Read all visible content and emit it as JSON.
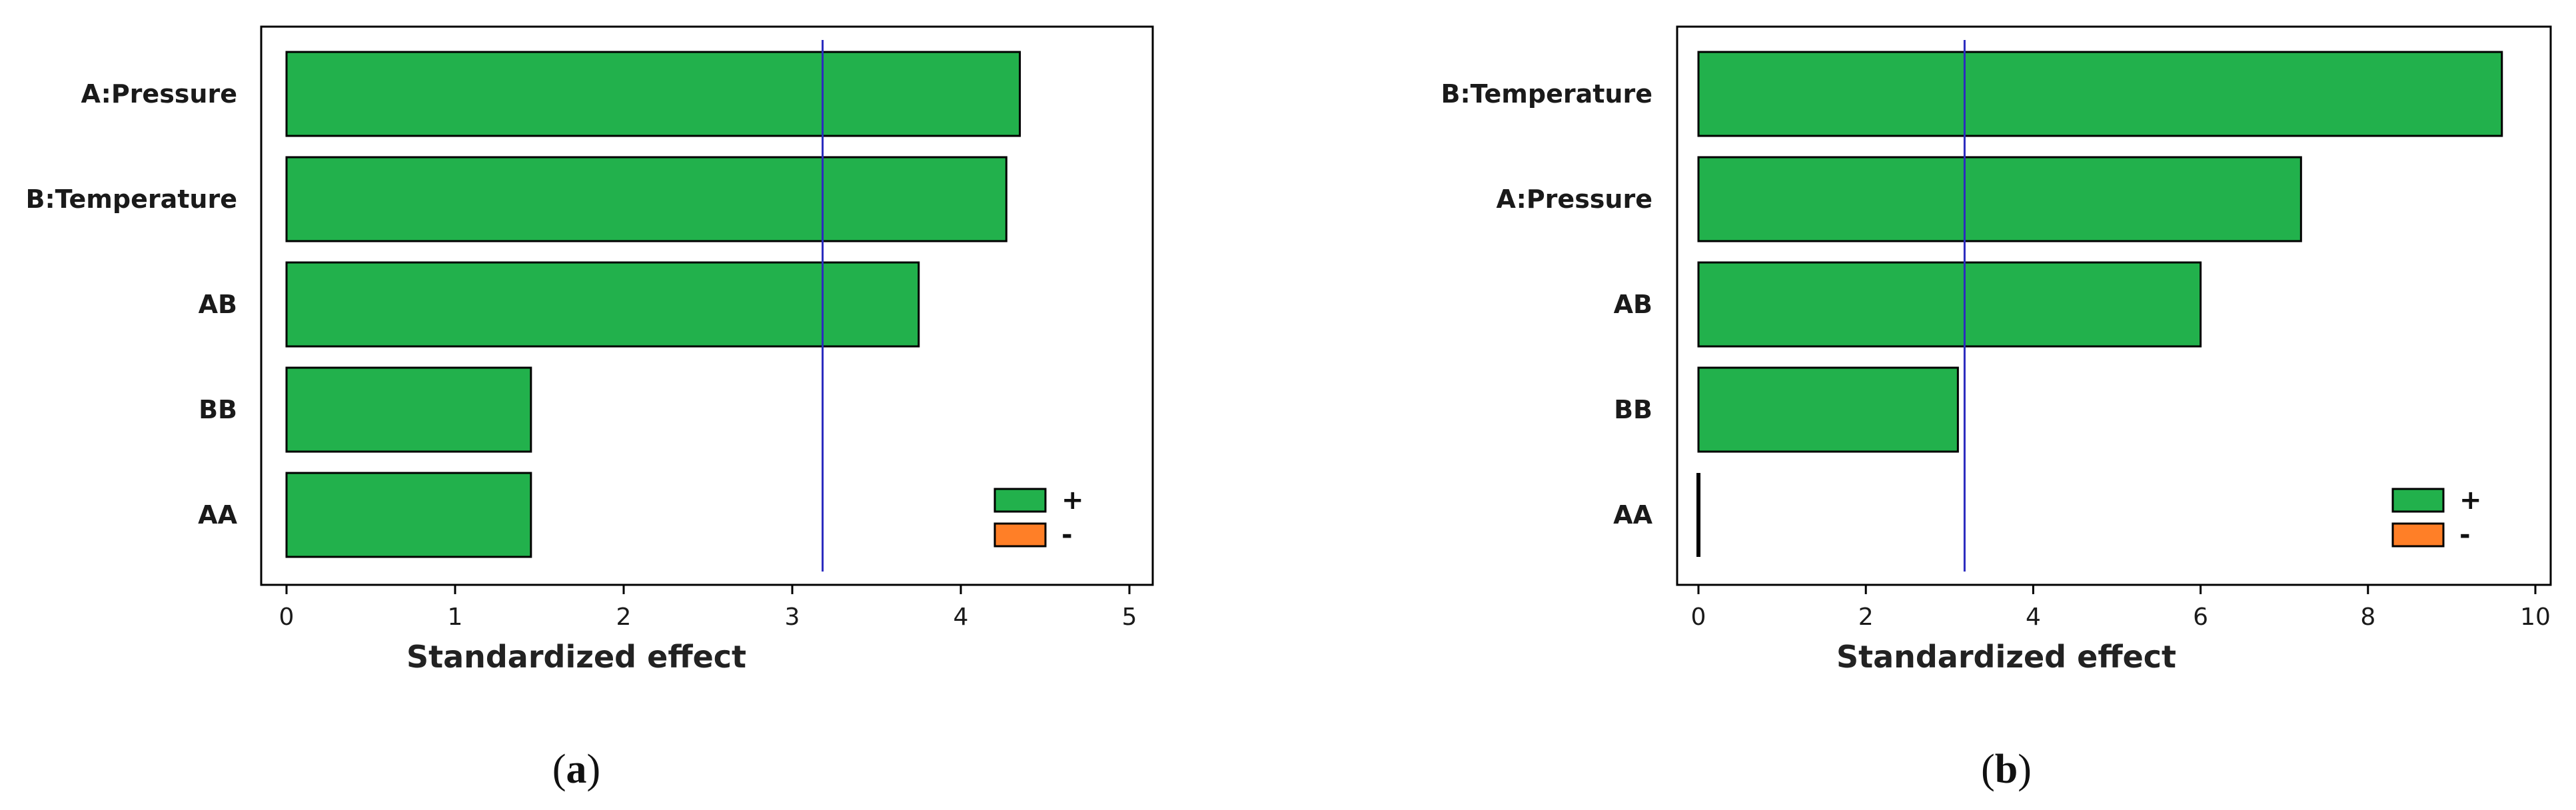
{
  "colors": {
    "positive": "#22b14c",
    "negative": "#ff7f27",
    "reference_line": "#2b2bbf",
    "frame": "#000000"
  },
  "legend": {
    "positive_label": "+",
    "negative_label": "-"
  },
  "chart_data": [
    {
      "type": "bar",
      "orientation": "horizontal",
      "panel_label_prefix": "(",
      "panel_label": "a",
      "panel_label_suffix": ")",
      "xlabel": "Standardized effect",
      "ylabel": "",
      "xlim": [
        0,
        5
      ],
      "xticks": [
        "0",
        "1",
        "2",
        "3",
        "4",
        "5"
      ],
      "categories": [
        "A:Pressure",
        "B:Temperature",
        "AB",
        "BB",
        "AA"
      ],
      "values": [
        4.35,
        4.27,
        3.75,
        1.45,
        1.45
      ],
      "signs": [
        "+",
        "+",
        "+",
        "+",
        "+"
      ],
      "reference_line": 3.18,
      "grid": false,
      "legend_position": "bottom-right"
    },
    {
      "type": "bar",
      "orientation": "horizontal",
      "panel_label_prefix": "(",
      "panel_label": "b",
      "panel_label_suffix": ")",
      "xlabel": "Standardized effect",
      "ylabel": "",
      "xlim": [
        0,
        10
      ],
      "xticks": [
        "0",
        "2",
        "4",
        "6",
        "8",
        "10"
      ],
      "categories": [
        "B:Temperature",
        "A:Pressure",
        "AB",
        "BB",
        "AA"
      ],
      "values": [
        9.6,
        7.2,
        6.0,
        3.1,
        0.0
      ],
      "signs": [
        "+",
        "+",
        "+",
        "+",
        "+"
      ],
      "reference_line": 3.18,
      "grid": false,
      "legend_position": "bottom-right"
    }
  ]
}
